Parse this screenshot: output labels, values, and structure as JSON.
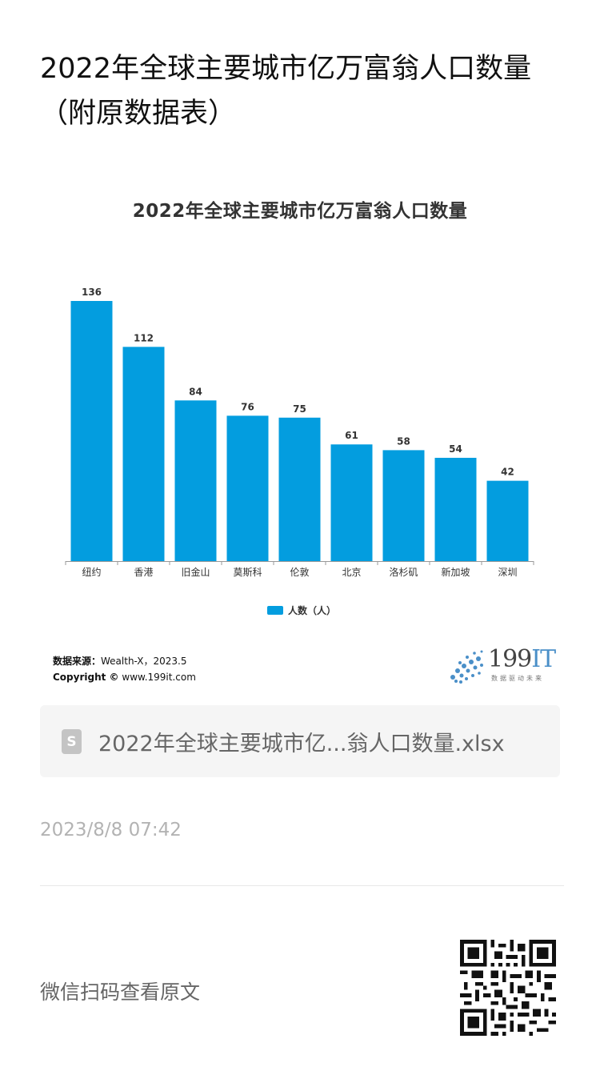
{
  "article": {
    "title_line1": "2022年全球主要城市亿万富翁人口数量",
    "title_line2": "（附原数据表）",
    "attachment_name": "2022年全球主要城市亿...翁人口数量.xlsx",
    "timestamp": "2023/8/8 07:42",
    "scan_prompt": "微信扫码查看原文"
  },
  "source": {
    "label": "数据来源：",
    "value": "Wealth-X，2023.5",
    "copyright_label": "Copyright ©",
    "copyright_value": "www.199it.com"
  },
  "logo": {
    "number": "199",
    "letters": "IT",
    "tagline": "数据驱动未来"
  },
  "colors": {
    "bar": "#039ddf",
    "axis": "#999999",
    "label": "#333333"
  },
  "chart_data": {
    "type": "bar",
    "title": "2022年全球主要城市亿万富翁人口数量",
    "categories": [
      "纽约",
      "香港",
      "旧金山",
      "莫斯科",
      "伦敦",
      "北京",
      "洛杉矶",
      "新加坡",
      "深圳"
    ],
    "series": [
      {
        "name": "人数（人）",
        "values": [
          136,
          112,
          84,
          76,
          75,
          61,
          58,
          54,
          42
        ]
      }
    ],
    "ylim": [
      0,
      140
    ],
    "grid": false,
    "legend": "bottom-center",
    "data_labels": true
  }
}
